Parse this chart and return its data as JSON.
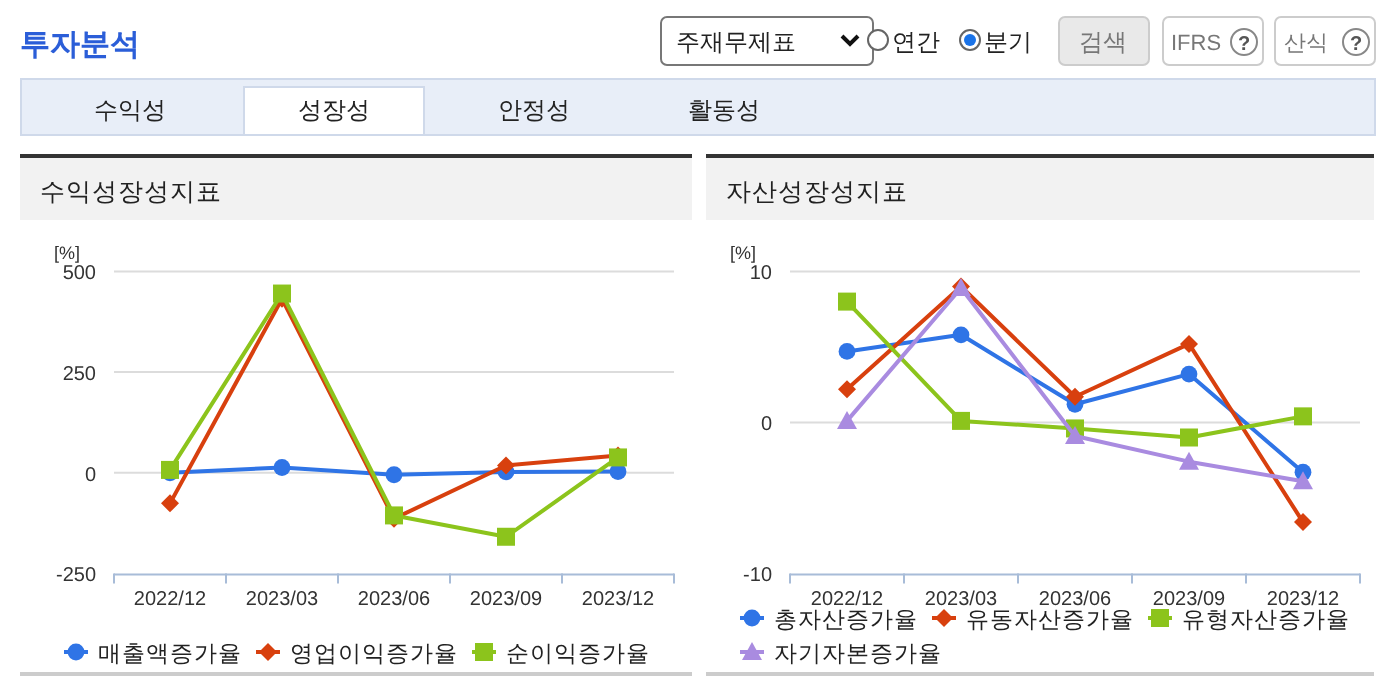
{
  "chart_data": [
    {
      "type": "other",
      "title": "투자분석",
      "annotations": [
        "주재무제표",
        "연간",
        "분기",
        "검색",
        "IFRS",
        "?",
        "산식",
        "?",
        "수익성",
        "성장성",
        "안정성",
        "활동성"
      ]
    },
    {
      "type": "line",
      "title": "수익성장성지표",
      "ylabel": "[%]",
      "categories": [
        "2022/12",
        "2023/03",
        "2023/06",
        "2023/09",
        "2023/12"
      ],
      "ylim": [
        -250,
        500
      ],
      "yticks": [
        -250,
        0,
        250,
        500
      ],
      "grid": "y",
      "legend": "bottom",
      "series": [
        {
          "name": "매출액증가율",
          "color": "#2f74e6",
          "marker": "circle",
          "values": [
            0,
            13,
            -5,
            2,
            3
          ]
        },
        {
          "name": "영업이익증가율",
          "color": "#d8400e",
          "marker": "diamond",
          "values": [
            -76,
            432,
            -114,
            18,
            43
          ]
        },
        {
          "name": "순이익증가율",
          "color": "#8cc41c",
          "marker": "square",
          "values": [
            7,
            445,
            -106,
            -159,
            38
          ]
        }
      ]
    },
    {
      "type": "line",
      "title": "자산성장성지표",
      "ylabel": "[%]",
      "categories": [
        "2022/12",
        "2023/03",
        "2023/06",
        "2023/09",
        "2023/12"
      ],
      "ylim": [
        -10,
        10
      ],
      "yticks": [
        -10,
        0,
        10
      ],
      "grid": "y",
      "legend": "bottom",
      "series": [
        {
          "name": "총자산증가율",
          "color": "#2f74e6",
          "marker": "circle",
          "values": [
            4.7,
            5.8,
            1.2,
            3.2,
            -3.3
          ]
        },
        {
          "name": "유동자산증가율",
          "color": "#d8400e",
          "marker": "diamond",
          "values": [
            2.2,
            9.0,
            1.7,
            5.2,
            -6.6
          ]
        },
        {
          "name": "유형자산증가율",
          "color": "#8cc41c",
          "marker": "square",
          "values": [
            8.0,
            0.1,
            -0.4,
            -1.0,
            0.4
          ]
        },
        {
          "name": "자기자본증가율",
          "color": "#a98be0",
          "marker": "triangle",
          "values": [
            0.1,
            8.9,
            -0.9,
            -2.6,
            -3.9
          ]
        }
      ]
    }
  ]
}
